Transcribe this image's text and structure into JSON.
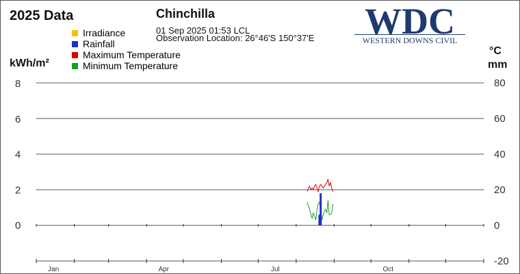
{
  "header": {
    "title": "2025 Data",
    "station": "Chinchilla",
    "observation_time": "01 Sep 2025  01:53 LCL",
    "observation_location": "Observation Location: 26°46'S 150°37'E"
  },
  "logo": {
    "text": "WDC",
    "subtitle": "WESTERN DOWNS CIVIL"
  },
  "legend": [
    {
      "label": "Irradiance",
      "color": "#f5c400"
    },
    {
      "label": "Rainfall",
      "color": "#1f2fbf"
    },
    {
      "label": "Maximum Temperature",
      "color": "#e00000"
    },
    {
      "label": "Minimum Temperature",
      "color": "#1c9a2a"
    }
  ],
  "units": {
    "left": "kWh/m²",
    "right_temp": "°C",
    "right_rain": "mm"
  },
  "chart_data": {
    "type": "line",
    "x_ticks": [
      "Jan",
      "Apr",
      "Jul",
      "Oct"
    ],
    "x_tick_dates": [
      "2025-01-01",
      "2025-04-01",
      "2025-07-01",
      "2025-10-01"
    ],
    "left_axis": {
      "label": "kWh/m²",
      "ylim": [
        0,
        8
      ],
      "ticks": [
        0,
        2,
        4,
        6,
        8
      ]
    },
    "right_axis": {
      "label": "°C / mm",
      "ylim": [
        -20,
        80
      ],
      "ticks": [
        -20,
        0,
        20,
        40,
        60,
        80
      ]
    },
    "grid": true,
    "series": [
      {
        "name": "Maximum Temperature",
        "axis": "right",
        "color": "#e00000",
        "x": [
          "2025-08-10",
          "2025-08-11",
          "2025-08-12",
          "2025-08-13",
          "2025-08-14",
          "2025-08-15",
          "2025-08-16",
          "2025-08-17",
          "2025-08-18",
          "2025-08-19",
          "2025-08-20",
          "2025-08-21",
          "2025-08-22",
          "2025-08-23",
          "2025-08-24",
          "2025-08-25",
          "2025-08-26",
          "2025-08-27",
          "2025-08-28",
          "2025-08-29",
          "2025-08-30",
          "2025-08-31"
        ],
        "values": [
          19,
          21,
          22,
          20,
          21,
          20,
          22,
          23,
          21,
          19,
          22,
          23,
          22,
          21,
          22,
          23,
          24,
          26,
          22,
          24,
          21,
          19
        ]
      },
      {
        "name": "Minimum Temperature",
        "axis": "right",
        "color": "#1c9a2a",
        "x": [
          "2025-08-10",
          "2025-08-11",
          "2025-08-12",
          "2025-08-13",
          "2025-08-14",
          "2025-08-15",
          "2025-08-16",
          "2025-08-17",
          "2025-08-18",
          "2025-08-19",
          "2025-08-20",
          "2025-08-21",
          "2025-08-22",
          "2025-08-23",
          "2025-08-24",
          "2025-08-25",
          "2025-08-26",
          "2025-08-27",
          "2025-08-28",
          "2025-08-29",
          "2025-08-30",
          "2025-08-31"
        ],
        "values": [
          13,
          11,
          9,
          6,
          4,
          7,
          5,
          3,
          9,
          12,
          13,
          9,
          3,
          6,
          8,
          9,
          7,
          14,
          6,
          6,
          7,
          12
        ]
      },
      {
        "name": "Rainfall",
        "axis": "right",
        "color": "#1f2fbf",
        "type": "bar",
        "x": [
          "2025-08-20",
          "2025-08-21"
        ],
        "values": [
          6,
          18
        ]
      }
    ]
  }
}
